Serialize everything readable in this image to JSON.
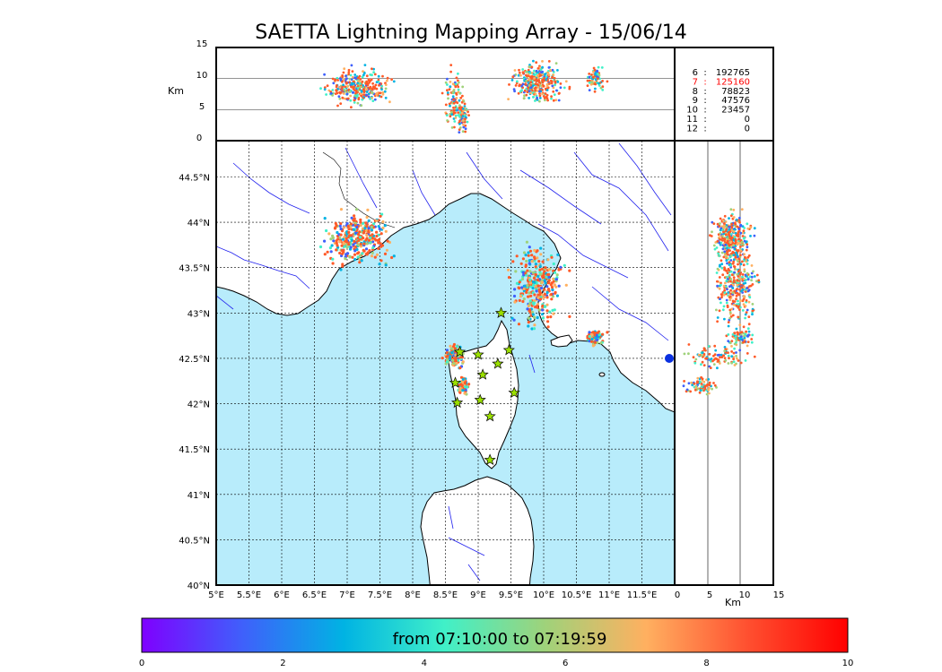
{
  "title": "SAETTA Lightning Mapping Array - 15/06/14",
  "alt_axis": {
    "label": "Km",
    "ticks": [
      "15",
      "10",
      "5",
      "0"
    ]
  },
  "side_axis": {
    "label": "Km",
    "ticks": [
      "0",
      "5",
      "10",
      "15"
    ]
  },
  "lon_ticks": [
    "5°E",
    "5.5°E",
    "6°E",
    "6.5°E",
    "7°E",
    "7.5°E",
    "8°E",
    "8.5°E",
    "9°E",
    "9.5°E",
    "10°E",
    "10.5°E",
    "11°E",
    "11.5°E"
  ],
  "lat_ticks": [
    "40°N",
    "40.5°N",
    "41°N",
    "41.5°N",
    "42°N",
    "42.5°N",
    "43°N",
    "43.5°N",
    "44°N",
    "44.5°N"
  ],
  "stations": {
    "rows": [
      {
        "n": "6",
        "count": "192765",
        "highlight": false
      },
      {
        "n": "7",
        "count": "125160",
        "highlight": true
      },
      {
        "n": "8",
        "count": "78823",
        "highlight": false
      },
      {
        "n": "9",
        "count": "47576",
        "highlight": false
      },
      {
        "n": "10",
        "count": "23457",
        "highlight": false
      },
      {
        "n": "11",
        "count": "0",
        "highlight": false
      },
      {
        "n": "12",
        "count": "0",
        "highlight": false
      }
    ],
    "highlight_color": "#ff0000"
  },
  "colorbar": {
    "label": "from 07:10:00 to 07:19:59",
    "ticks": [
      "0",
      "2",
      "4",
      "6",
      "8",
      "10"
    ],
    "colors": [
      "#7f00ff",
      "#3f60fb",
      "#00b3e3",
      "#40f0c8",
      "#9fd27a",
      "#ffb060",
      "#ff5030",
      "#ff0000"
    ]
  },
  "colors": {
    "sea": "#b8ecfb",
    "land": "#ffffff",
    "river": "#2222ee",
    "station": "#9be000",
    "flash_main": "#ff5a28"
  },
  "chart_data": {
    "type": "scatter",
    "xlabel": "",
    "ylabel": "",
    "xlim": [
      5,
      12
    ],
    "ylim": [
      40,
      44.9
    ],
    "alt_lim": [
      0,
      15
    ],
    "stations": [
      {
        "lon": 9.35,
        "lat": 43.0
      },
      {
        "lon": 8.72,
        "lat": 42.57
      },
      {
        "lon": 9.0,
        "lat": 42.54
      },
      {
        "lon": 9.47,
        "lat": 42.59
      },
      {
        "lon": 9.3,
        "lat": 42.44
      },
      {
        "lon": 9.07,
        "lat": 42.32
      },
      {
        "lon": 8.65,
        "lat": 42.23
      },
      {
        "lon": 9.55,
        "lat": 42.12
      },
      {
        "lon": 9.03,
        "lat": 42.04
      },
      {
        "lon": 8.68,
        "lat": 42.01
      },
      {
        "lon": 9.18,
        "lat": 41.86
      },
      {
        "lon": 9.18,
        "lat": 41.38
      }
    ],
    "clusters": [
      {
        "lon": 7.15,
        "lat": 43.82,
        "slon": 0.22,
        "slat": 0.13,
        "alt": 8.5,
        "salt": 2.5,
        "n": 320
      },
      {
        "lon": 9.9,
        "lat": 43.3,
        "slon": 0.17,
        "slat": 0.2,
        "alt": 9.5,
        "salt": 3.0,
        "n": 320
      },
      {
        "lon": 8.63,
        "lat": 42.53,
        "slon": 0.07,
        "slat": 0.06,
        "alt": 6.5,
        "salt": 4.0,
        "n": 100
      },
      {
        "lon": 8.77,
        "lat": 42.2,
        "slon": 0.04,
        "slat": 0.04,
        "alt": 4.0,
        "salt": 2.5,
        "n": 70
      },
      {
        "lon": 10.8,
        "lat": 42.73,
        "slon": 0.07,
        "slat": 0.04,
        "alt": 10.0,
        "salt": 2.0,
        "n": 70
      }
    ]
  }
}
